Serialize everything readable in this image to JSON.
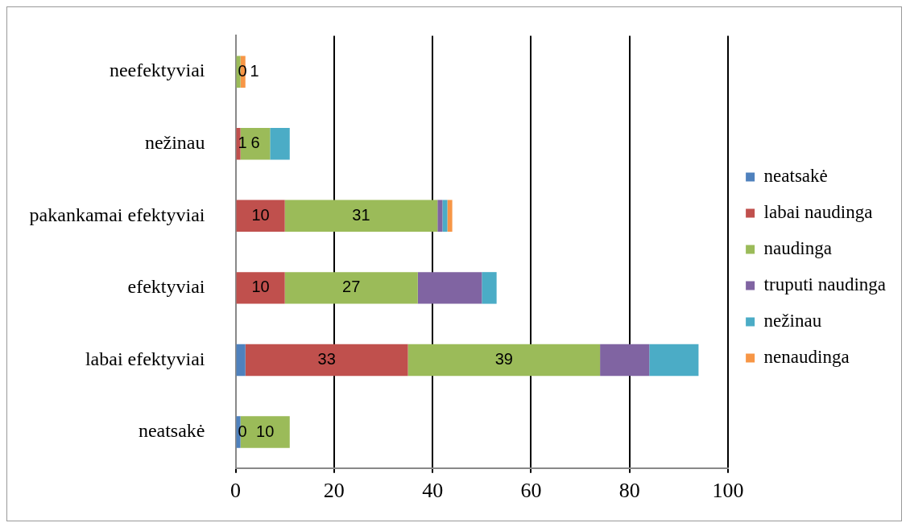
{
  "chart_data": {
    "type": "bar",
    "orientation": "horizontal",
    "stacked": true,
    "categories": [
      "neefektyviai",
      "nežinau",
      "pakankamai efektyviai",
      "efektyviai",
      "labai efektyviai",
      "neatsakė"
    ],
    "series": [
      {
        "name": "neatsakė",
        "color": "#4f81bd",
        "values": [
          0,
          0,
          0,
          0,
          2,
          1
        ]
      },
      {
        "name": "labai naudinga",
        "color": "#c0504d",
        "values": [
          0,
          1,
          10,
          10,
          33,
          0
        ],
        "value_labels": [
          "0",
          "1",
          "10",
          "10",
          "33",
          "0"
        ]
      },
      {
        "name": "naudinga",
        "color": "#9bbb59",
        "values": [
          1,
          6,
          31,
          27,
          39,
          10
        ],
        "value_labels": [
          "1",
          "6",
          "31",
          "27",
          "39",
          "10"
        ]
      },
      {
        "name": "truputi naudinga",
        "color": "#8064a2",
        "values": [
          0,
          0,
          1,
          13,
          10,
          0
        ]
      },
      {
        "name": "nežinau",
        "color": "#4bacc6",
        "values": [
          0,
          4,
          1,
          3,
          10,
          0
        ]
      },
      {
        "name": "nenaudinga",
        "color": "#f79646",
        "values": [
          1,
          0,
          1,
          0,
          0,
          0
        ]
      }
    ],
    "xlim": [
      0,
      100
    ],
    "xticks": [
      0,
      20,
      40,
      60,
      80,
      100
    ],
    "grid": "x",
    "legend": "right"
  }
}
